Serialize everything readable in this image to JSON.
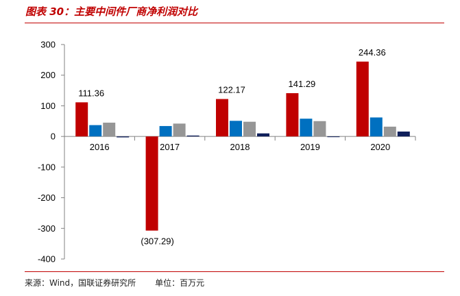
{
  "header": {
    "title": "图表 30：主要中间件厂商净利润对比"
  },
  "footer": {
    "source": "来源：Wind，国联证券研究所",
    "unit": "单位：百万元"
  },
  "chart_data": {
    "type": "bar",
    "title": "图表 30：主要中间件厂商净利润对比",
    "xlabel": "",
    "ylabel": "",
    "categories": [
      "2016",
      "2017",
      "2018",
      "2019",
      "2020"
    ],
    "ylim": [
      -400,
      300
    ],
    "yticks": [
      300,
      200,
      100,
      0,
      -100,
      -200,
      -300,
      -400
    ],
    "yticklabels": [
      "300",
      "200",
      "100",
      "0",
      "-100",
      "-200",
      "-300",
      "-400"
    ],
    "legend": "none",
    "grid": false,
    "series": [
      {
        "color": "#c00000",
        "values": [
          111.36,
          -307.29,
          122.17,
          141.29,
          244.36
        ],
        "labels": [
          "111.36",
          "(307.29)",
          "122.17",
          "141.29",
          "244.36"
        ]
      },
      {
        "color": "#0070c0",
        "values": [
          37,
          34,
          51,
          58,
          62
        ]
      },
      {
        "color": "#969696",
        "values": [
          45,
          42,
          48,
          50,
          32
        ]
      },
      {
        "color": "#0f1f5a",
        "values": [
          -3,
          3,
          10,
          -2,
          16
        ]
      }
    ]
  }
}
